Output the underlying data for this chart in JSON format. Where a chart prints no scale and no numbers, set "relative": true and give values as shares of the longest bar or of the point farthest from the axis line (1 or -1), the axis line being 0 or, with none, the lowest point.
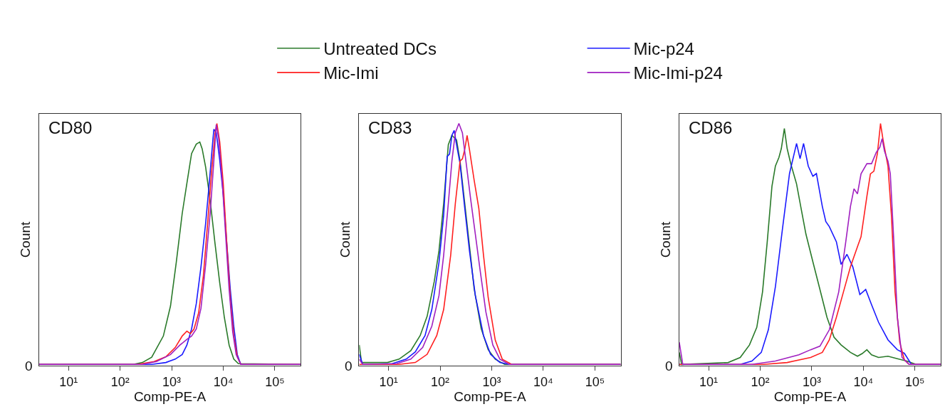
{
  "chart_data": [
    {
      "type": "line",
      "title": "CD80",
      "xlabel": "Comp-PE-A",
      "ylabel": "Count",
      "relative": true,
      "log": "x",
      "legend": "top",
      "marker": "none",
      "line_style": "solid",
      "annotations": [
        "0"
      ],
      "xlim": [
        2.7,
        316000
      ],
      "xticks": [
        {
          "value": 10,
          "label": "10¹"
        },
        {
          "value": 100,
          "label": "10²"
        },
        {
          "value": 1000,
          "label": "10³"
        },
        {
          "value": 10000,
          "label": "10⁴"
        },
        {
          "value": 100000,
          "label": "10⁵"
        }
      ],
      "series": [
        {
          "name": "Untreated DCs",
          "color": "#2a7a2a",
          "x": [
            2.7,
            180,
            270,
            410,
            690,
            950,
            1230,
            1600,
            1970,
            2430,
            3000,
            3510,
            3900,
            4560,
            5620,
            6930,
            8550,
            10500,
            13000,
            16000,
            19700,
            316000
          ],
          "values": [
            0,
            0,
            0.008,
            0.03,
            0.118,
            0.243,
            0.425,
            0.626,
            0.751,
            0.875,
            0.914,
            0.923,
            0.895,
            0.818,
            0.674,
            0.501,
            0.338,
            0.195,
            0.08,
            0.022,
            0.003,
            0
          ]
        },
        {
          "name": "Mic-p24",
          "color": "#1a1aff",
          "x": [
            2.7,
            411,
            770,
            1170,
            1600,
            1970,
            2430,
            3000,
            3700,
            4560,
            5340,
            6240,
            6580,
            7310,
            8550,
            10000,
            11700,
            13700,
            16000,
            18700,
            21900,
            316000
          ],
          "values": [
            0,
            0,
            0.008,
            0.022,
            0.041,
            0.08,
            0.147,
            0.252,
            0.405,
            0.587,
            0.75,
            0.923,
            0.976,
            0.962,
            0.847,
            0.704,
            0.503,
            0.311,
            0.158,
            0.041,
            0,
            0
          ]
        },
        {
          "name": "Mic-Imi",
          "color": "#ff2020",
          "x": [
            2.7,
            219,
            456,
            770,
            1170,
            1600,
            1970,
            2310,
            2710,
            3330,
            4110,
            5070,
            5930,
            6930,
            7530,
            8550,
            10000,
            11700,
            13700,
            16000,
            18700,
            21900,
            316000
          ],
          "values": [
            0,
            0,
            0.012,
            0.032,
            0.07,
            0.118,
            0.138,
            0.128,
            0.147,
            0.214,
            0.367,
            0.607,
            0.798,
            0.96,
            1.0,
            0.923,
            0.75,
            0.503,
            0.273,
            0.118,
            0.032,
            0,
            0
          ]
        },
        {
          "name": "Mic-Imi-p24",
          "color": "#a020c0",
          "x": [
            2.7,
            270,
            507,
            950,
            1440,
            1970,
            2430,
            3000,
            3700,
            4560,
            5620,
            6580,
            7310,
            8110,
            9490,
            11100,
            13000,
            15200,
            17800,
            21900,
            316000
          ],
          "values": [
            0,
            0,
            0.012,
            0.041,
            0.08,
            0.104,
            0.118,
            0.147,
            0.233,
            0.415,
            0.636,
            0.847,
            0.995,
            0.942,
            0.769,
            0.54,
            0.311,
            0.137,
            0.041,
            0,
            0
          ]
        }
      ]
    },
    {
      "type": "line",
      "title": "CD83",
      "xlabel": "Comp-PE-A",
      "ylabel": "Count",
      "relative": true,
      "log": "x",
      "marker": "none",
      "line_style": "solid",
      "annotations": [
        "0"
      ],
      "xlim": [
        2.7,
        316000
      ],
      "xticks": [
        {
          "value": 10,
          "label": "10¹"
        },
        {
          "value": 100,
          "label": "10²"
        },
        {
          "value": 1000,
          "label": "10³"
        },
        {
          "value": 10000,
          "label": "10⁴"
        },
        {
          "value": 100000,
          "label": "10⁵"
        }
      ],
      "series": [
        {
          "name": "Untreated DCs",
          "color": "#2a7a2a",
          "x": [
            2.7,
            3.0,
            9.5,
            16,
            27,
            41,
            56,
            77,
            95,
            117,
            144,
            169,
            187,
            208,
            243,
            300,
            370,
            456,
            624,
            855,
            1170,
            1780,
            316000
          ],
          "values": [
            0.081,
            0.008,
            0.008,
            0.022,
            0.057,
            0.12,
            0.2,
            0.345,
            0.472,
            0.668,
            0.912,
            0.951,
            0.941,
            0.932,
            0.844,
            0.668,
            0.492,
            0.315,
            0.149,
            0.061,
            0.022,
            0,
            0
          ]
        },
        {
          "name": "Mic-p24",
          "color": "#1a1aff",
          "x": [
            2.7,
            3.16,
            11.7,
            22,
            33,
            51,
            69,
            95,
            117,
            137,
            152,
            169,
            187,
            208,
            243,
            300,
            370,
            481,
            693,
            949,
            1440,
            2190,
            316000
          ],
          "values": [
            0.042,
            0,
            0.003,
            0.022,
            0.052,
            0.12,
            0.228,
            0.423,
            0.619,
            0.863,
            0.873,
            0.951,
            0.971,
            0.912,
            0.834,
            0.648,
            0.472,
            0.286,
            0.12,
            0.042,
            0.008,
            0,
            0
          ]
        },
        {
          "name": "Mic-Imi",
          "color": "#ff2020",
          "x": [
            2.7,
            16,
            33,
            56,
            86,
            117,
            160,
            197,
            243,
            270,
            300,
            333,
            370,
            456,
            562,
            693,
            855,
            1170,
            1600,
            2430,
            316000
          ],
          "values": [
            0,
            0,
            0.008,
            0.042,
            0.12,
            0.228,
            0.453,
            0.668,
            0.844,
            0.853,
            0.892,
            0.95,
            0.892,
            0.765,
            0.648,
            0.453,
            0.277,
            0.101,
            0.022,
            0,
            0
          ]
        },
        {
          "name": "Mic-Imi-p24",
          "color": "#a020c0",
          "x": [
            2.7,
            3.16,
            14.4,
            27,
            46,
            69,
            95,
            117,
            144,
            169,
            197,
            231,
            270,
            316,
            390,
            481,
            593,
            770,
            1050,
            1440,
            2190,
            316000
          ],
          "values": [
            0.022,
            0,
            0.003,
            0.022,
            0.071,
            0.159,
            0.286,
            0.453,
            0.668,
            0.844,
            0.961,
            1.0,
            0.961,
            0.844,
            0.687,
            0.541,
            0.394,
            0.218,
            0.081,
            0.022,
            0,
            0
          ]
        }
      ]
    },
    {
      "type": "line",
      "title": "CD86",
      "xlabel": "Comp-PE-A",
      "ylabel": "Count",
      "relative": true,
      "log": "x",
      "marker": "none",
      "line_style": "solid",
      "annotations": [
        "0"
      ],
      "xlim": [
        2.7,
        316000
      ],
      "xticks": [
        {
          "value": 10,
          "label": "10¹"
        },
        {
          "value": 100,
          "label": "10²"
        },
        {
          "value": 1000,
          "label": "10³"
        },
        {
          "value": 10000,
          "label": "10⁴"
        },
        {
          "value": 100000,
          "label": "10⁵"
        }
      ],
      "series": [
        {
          "name": "Untreated DCs",
          "color": "#2a7a2a",
          "x": [
            2.7,
            3.0,
            24,
            41,
            62,
            86,
            111,
            137,
            169,
            197,
            231,
            257,
            294,
            333,
            390,
            507,
            624,
            770,
            1050,
            1440,
            1970,
            2700,
            3700,
            5620,
            7690,
            9490,
            11700,
            14400,
            19700,
            30000,
            45600,
            69300,
            105000,
            316000
          ],
          "values": [
            0.05,
            0,
            0.008,
            0.029,
            0.081,
            0.154,
            0.301,
            0.509,
            0.739,
            0.823,
            0.859,
            0.896,
            0.979,
            0.896,
            0.834,
            0.749,
            0.645,
            0.541,
            0.426,
            0.311,
            0.196,
            0.113,
            0.081,
            0.05,
            0.034,
            0.045,
            0.061,
            0.04,
            0.029,
            0.034,
            0.024,
            0.014,
            0,
            0
          ]
        },
        {
          "name": "Mic-p24",
          "color": "#1a1aff",
          "x": [
            2.7,
            41,
            69,
            105,
            144,
            197,
            270,
            370,
            507,
            593,
            693,
            855,
            1050,
            1230,
            1600,
            1870,
            2190,
            3000,
            3700,
            4810,
            6240,
            8550,
            11100,
            14400,
            19700,
            30000,
            45600,
            62400,
            85500,
            316000
          ],
          "values": [
            0,
            0,
            0.014,
            0.05,
            0.144,
            0.322,
            0.562,
            0.792,
            0.917,
            0.854,
            0.917,
            0.823,
            0.781,
            0.792,
            0.656,
            0.593,
            0.572,
            0.509,
            0.415,
            0.457,
            0.405,
            0.29,
            0.311,
            0.248,
            0.175,
            0.102,
            0.061,
            0.046,
            0,
            0
          ]
        },
        {
          "name": "Mic-Imi",
          "color": "#ff2020",
          "x": [
            2.7,
            117,
            333,
            949,
            1600,
            2190,
            3000,
            4110,
            5620,
            7690,
            9010,
            11700,
            13700,
            16000,
            18700,
            21500,
            24300,
            30000,
            35100,
            41100,
            50700,
            62400,
            76900,
            316000
          ],
          "values": [
            0,
            0,
            0.008,
            0.029,
            0.05,
            0.102,
            0.196,
            0.301,
            0.405,
            0.489,
            0.53,
            0.697,
            0.791,
            0.802,
            0.875,
            1.0,
            0.927,
            0.823,
            0.614,
            0.301,
            0.092,
            0.019,
            0,
            0
          ]
        },
        {
          "name": "Mic-Imi-p24",
          "color": "#a020c0",
          "x": [
            2.7,
            3.16,
            69,
            197,
            562,
            949,
            1440,
            2190,
            3330,
            4560,
            5620,
            6580,
            7690,
            9010,
            11700,
            14400,
            17800,
            20800,
            23100,
            25700,
            30000,
            33300,
            39000,
            45600,
            56200,
            76900,
            316000
          ],
          "values": [
            0.092,
            0,
            0,
            0.014,
            0.04,
            0.061,
            0.076,
            0.144,
            0.301,
            0.509,
            0.656,
            0.729,
            0.708,
            0.791,
            0.833,
            0.833,
            0.88,
            0.901,
            0.937,
            0.885,
            0.843,
            0.791,
            0.509,
            0.196,
            0.029,
            0,
            0
          ]
        }
      ]
    }
  ]
}
